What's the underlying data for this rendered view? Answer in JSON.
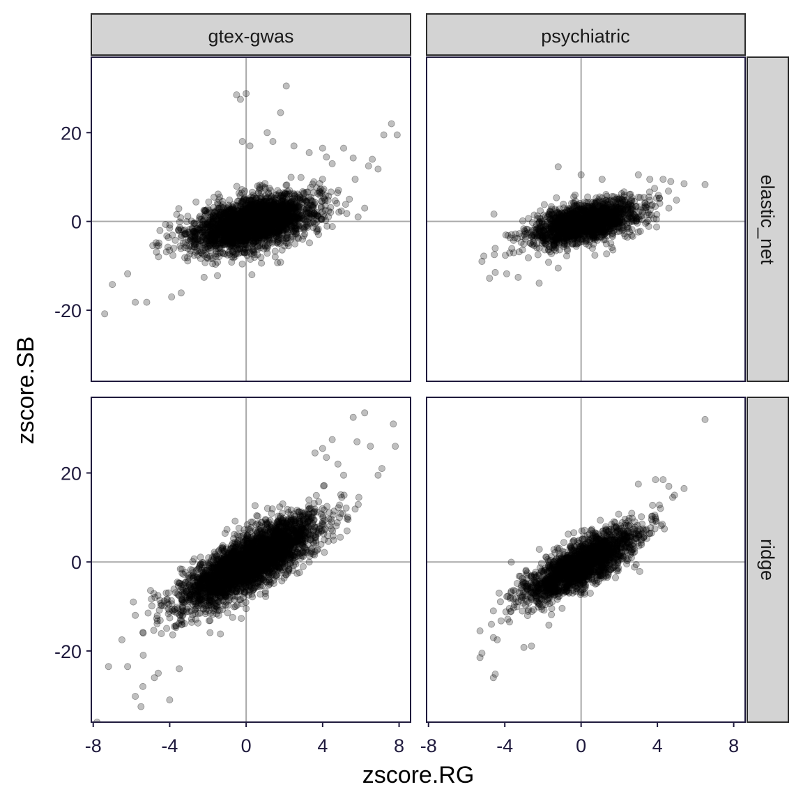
{
  "chart_data": {
    "type": "scatter",
    "xlabel": "zscore.RG",
    "ylabel": "zscore.SB",
    "xlim": [
      -8.1,
      8.6
    ],
    "ylim": [
      -36,
      37
    ],
    "x_ticks": [
      -8,
      -4,
      0,
      4,
      8
    ],
    "x_tick_labels": [
      "-8",
      "-4",
      "0",
      "4",
      "8"
    ],
    "y_ticks": [
      -20,
      0,
      20
    ],
    "y_tick_labels": [
      "-20",
      "0",
      "20"
    ],
    "reference_lines": {
      "x": 0,
      "y": 0
    },
    "grid": false,
    "point_color": "#000000",
    "point_alpha": 0.25,
    "column_facets": [
      "gtex-gwas",
      "psychiatric"
    ],
    "row_facets": [
      "elastic_net",
      "ridge"
    ],
    "panels": [
      {
        "column": "gtex-gwas",
        "row": "elastic_net",
        "cloud": {
          "n": 2600,
          "x_mean": 0.3,
          "x_sd": 1.6,
          "x_min": -5,
          "x_max": 6,
          "y_mean": -0.4,
          "y_sd": 2.8,
          "slope": 0.9
        },
        "outliers": [
          [
            -7.4,
            -20.8
          ],
          [
            -7,
            -14.2
          ],
          [
            -5.8,
            -18.2
          ],
          [
            -5.2,
            -18.2
          ],
          [
            -6.2,
            -11.8
          ],
          [
            -3.9,
            -17
          ],
          [
            -3.4,
            -16.1
          ],
          [
            -2.2,
            -12.6
          ],
          [
            -1.5,
            -12.2
          ],
          [
            -0.5,
            28.5
          ],
          [
            -0.3,
            27.5
          ],
          [
            0,
            28.8
          ],
          [
            2.1,
            30.5
          ],
          [
            1.8,
            24.5
          ],
          [
            -0.2,
            18
          ],
          [
            0.2,
            17
          ],
          [
            1.1,
            20
          ],
          [
            1.4,
            18
          ],
          [
            2.5,
            17
          ],
          [
            3.3,
            15.5
          ],
          [
            4,
            16.5
          ],
          [
            4.2,
            14.5
          ],
          [
            4.5,
            13
          ],
          [
            5.1,
            16.5
          ],
          [
            5.6,
            14.3
          ],
          [
            5.7,
            9.5
          ],
          [
            6.4,
            12.5
          ],
          [
            6.6,
            14
          ],
          [
            7.2,
            19.5
          ],
          [
            7.6,
            22
          ],
          [
            7.9,
            19.5
          ],
          [
            6.9,
            11.8
          ],
          [
            6.2,
            3
          ],
          [
            5.4,
            5
          ],
          [
            0.8,
            -9.4
          ],
          [
            1.8,
            -9.2
          ],
          [
            0.3,
            -12
          ],
          [
            3.6,
            -0.5
          ],
          [
            4.3,
            1
          ]
        ]
      },
      {
        "column": "psychiatric",
        "row": "elastic_net",
        "cloud": {
          "n": 1700,
          "x_mean": 0.2,
          "x_sd": 1.4,
          "x_min": -4.8,
          "x_max": 5.5,
          "y_mean": -0.3,
          "y_sd": 2.2,
          "slope": 0.9
        },
        "outliers": [
          [
            -5.2,
            -9
          ],
          [
            -5.1,
            -7.8
          ],
          [
            -4.8,
            -12.8
          ],
          [
            -4.5,
            -11.5
          ],
          [
            -3.9,
            -11.8
          ],
          [
            -3.3,
            -12.6
          ],
          [
            -2.2,
            -13.9
          ],
          [
            -1.2,
            -10.5
          ],
          [
            -1.2,
            12.3
          ],
          [
            0,
            10.5
          ],
          [
            1.1,
            9.5
          ],
          [
            3,
            10.5
          ],
          [
            3.6,
            9.5
          ],
          [
            4.3,
            9.5
          ],
          [
            4.7,
            9
          ],
          [
            5.4,
            8.5
          ],
          [
            6.5,
            8.3
          ],
          [
            5,
            4.8
          ],
          [
            4.6,
            3
          ]
        ]
      },
      {
        "column": "gtex-gwas",
        "row": "ridge",
        "cloud": {
          "n": 3200,
          "x_mean": 0.2,
          "x_sd": 1.8,
          "x_min": -5.5,
          "x_max": 6,
          "y_mean": 0,
          "y_sd": 3.2,
          "slope": 2.3
        },
        "outliers": [
          [
            -7.8,
            -36
          ],
          [
            -7.2,
            -23.5
          ],
          [
            -6.2,
            -23.5
          ],
          [
            -5.8,
            -30.2
          ],
          [
            -5.5,
            -32.5
          ],
          [
            -5.4,
            -28
          ],
          [
            -4.8,
            -26
          ],
          [
            -4.6,
            -25
          ],
          [
            -3.5,
            -24
          ],
          [
            -4,
            -31
          ],
          [
            -6.5,
            -17.5
          ],
          [
            -5.8,
            -12
          ],
          [
            -5.9,
            -9
          ],
          [
            0,
            -10.5
          ],
          [
            3.6,
            24.5
          ],
          [
            4,
            25.5
          ],
          [
            4.2,
            23.5
          ],
          [
            4.8,
            22
          ],
          [
            5.1,
            19.5
          ],
          [
            5,
            14.5
          ],
          [
            5.6,
            32.5
          ],
          [
            5.8,
            27
          ],
          [
            6.2,
            33.5
          ],
          [
            6.5,
            26
          ],
          [
            6.9,
            19.5
          ],
          [
            7.4,
            38
          ],
          [
            7.7,
            31
          ],
          [
            7.8,
            26
          ],
          [
            7.1,
            21
          ],
          [
            4.5,
            27.5
          ]
        ]
      },
      {
        "column": "psychiatric",
        "row": "ridge",
        "cloud": {
          "n": 2000,
          "x_mean": 0,
          "x_sd": 1.5,
          "x_min": -4.5,
          "x_max": 4.5,
          "y_mean": -0.5,
          "y_sd": 2.5,
          "slope": 2.2
        },
        "outliers": [
          [
            6.5,
            32
          ],
          [
            -4.5,
            -25.2
          ],
          [
            -4.6,
            -26
          ],
          [
            -5.2,
            -20.5
          ],
          [
            -5.3,
            -21.5
          ],
          [
            -5.3,
            -15.5
          ],
          [
            -4.6,
            -17
          ],
          [
            -4.4,
            -17.5
          ],
          [
            -4.7,
            -14
          ],
          [
            -4.6,
            -11
          ],
          [
            -4.3,
            -7
          ],
          [
            -3,
            -19.2
          ],
          [
            -2.6,
            -18.9
          ],
          [
            3,
            17.5
          ],
          [
            3.9,
            18.5
          ],
          [
            4.3,
            18.5
          ],
          [
            4.6,
            17
          ],
          [
            5.4,
            16.5
          ],
          [
            4.9,
            15
          ],
          [
            4.8,
            14.5
          ],
          [
            4.1,
            12.8
          ],
          [
            3.9,
            10
          ]
        ]
      }
    ]
  }
}
